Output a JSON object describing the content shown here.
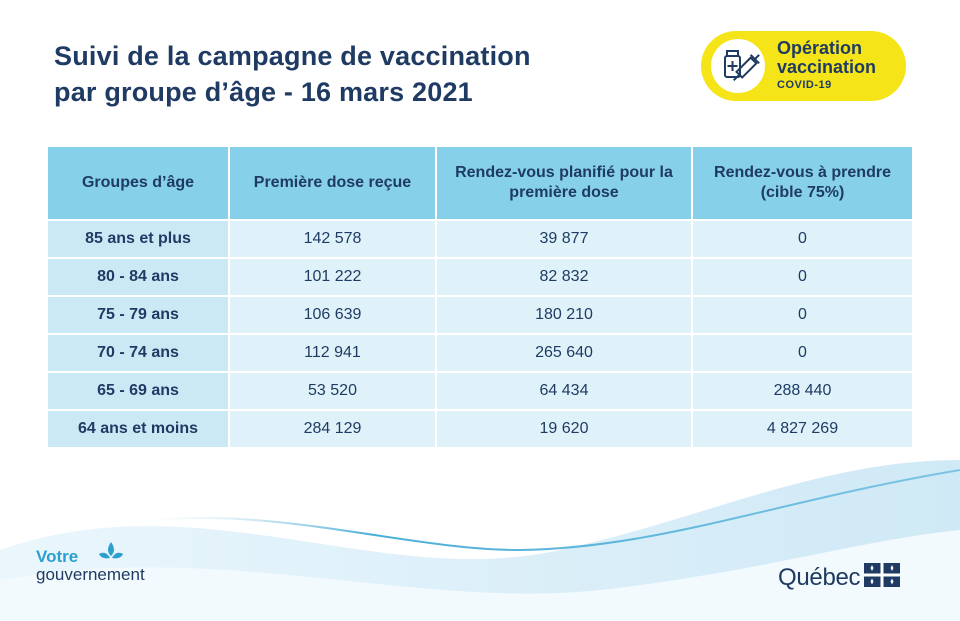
{
  "title": {
    "line1": "Suivi de la campagne de vaccination",
    "line2": "par groupe d’âge - 16 mars 2021"
  },
  "badge": {
    "line1": "Opération",
    "line2": "vaccination",
    "line3": "COVID-19",
    "icon": "syringe-vial-icon",
    "color": "#f5e417"
  },
  "table": {
    "headers": [
      "Groupes d’âge",
      "Première dose reçue",
      "Rendez-vous planifié pour la première dose",
      "Rendez-vous à prendre (cible 75%)"
    ],
    "rows": [
      [
        "85 ans et plus",
        "142 578",
        "39 877",
        "0"
      ],
      [
        "80 - 84 ans",
        "101 222",
        "82 832",
        "0"
      ],
      [
        "75 - 79 ans",
        "106 639",
        "180 210",
        "0"
      ],
      [
        "70 - 74 ans",
        "112 941",
        "265 640",
        "0"
      ],
      [
        "65 - 69 ans",
        "53 520",
        "64 434",
        "288 440"
      ],
      [
        "64 ans et moins",
        "284 129",
        "19 620",
        "4 827 269"
      ]
    ]
  },
  "footer": {
    "gov_line1": "Votre",
    "gov_line2": "gouvernement",
    "quebec_word": "Québec",
    "gov_icon": "fleur-de-lis-icon",
    "flag_icon": "quebec-flag-icon"
  },
  "colors": {
    "title": "#1f3b63",
    "header_bg": "#86d0ea",
    "first_col_bg": "#cbe9f5",
    "cell_bg": "#dff2f9",
    "wave": "#2a9fd0"
  }
}
